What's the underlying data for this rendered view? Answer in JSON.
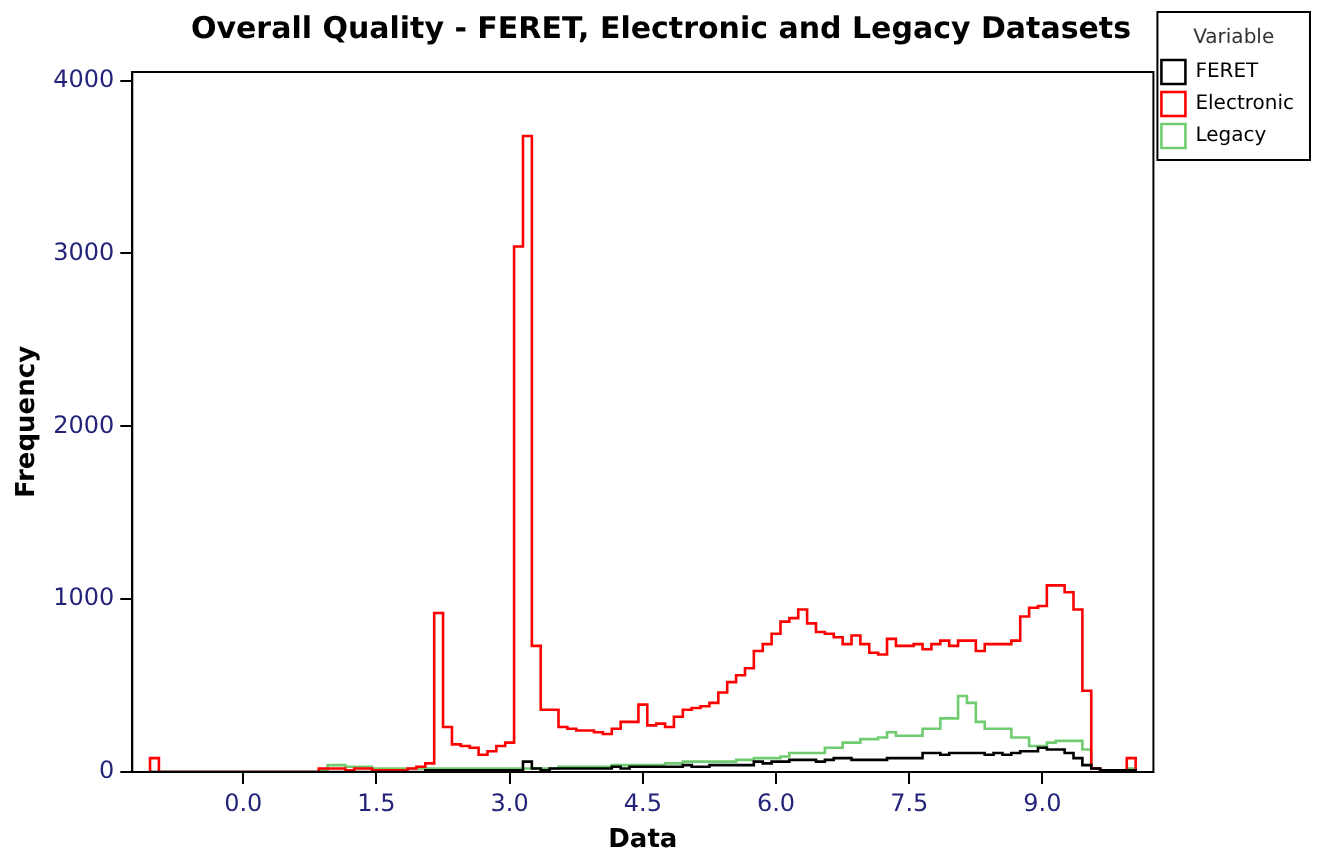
{
  "chart_data": {
    "type": "histogram",
    "title": "Overall Quality - FERET, Electronic and Legacy Datasets",
    "xlabel": "Data",
    "ylabel": "Frequency",
    "legend_title": "Variable",
    "legend": "top right",
    "xlim": [
      -1.25,
      10.25
    ],
    "xticks": [
      {
        "value": 0,
        "label": "0.0"
      },
      1.5,
      {
        "value": 3,
        "label": "3.0"
      },
      4.5,
      {
        "value": 6,
        "label": "6.0"
      },
      7.5,
      {
        "value": 9,
        "label": "9.0"
      }
    ],
    "ylim": [
      0,
      4050
    ],
    "yticks": [
      0,
      1000,
      2000,
      3000,
      4000
    ],
    "bins": [
      -1.05,
      -0.95,
      0.85,
      0.95,
      1.05,
      1.15,
      1.25,
      1.35,
      1.45,
      1.55,
      1.65,
      1.75,
      1.85,
      1.95,
      2.05,
      2.15,
      2.25,
      2.35,
      2.45,
      2.55,
      2.65,
      2.75,
      2.85,
      2.95,
      3.05,
      3.15,
      3.25,
      3.35,
      3.45,
      3.55,
      3.65,
      3.75,
      3.85,
      3.95,
      4.05,
      4.15,
      4.25,
      4.35,
      4.45,
      4.55,
      4.65,
      4.75,
      4.85,
      4.95,
      5.05,
      5.15,
      5.25,
      5.35,
      5.45,
      5.55,
      5.65,
      5.75,
      5.85,
      5.95,
      6.05,
      6.15,
      6.25,
      6.35,
      6.45,
      6.55,
      6.65,
      6.75,
      6.85,
      6.95,
      7.05,
      7.15,
      7.25,
      7.35,
      7.45,
      7.55,
      7.65,
      7.75,
      7.85,
      7.95,
      8.05,
      8.15,
      8.25,
      8.35,
      8.45,
      8.55,
      8.65,
      8.75,
      8.85,
      8.95,
      9.05,
      9.15,
      9.25,
      9.35,
      9.45,
      9.55,
      9.65,
      9.75,
      9.85,
      9.95,
      10.05
    ],
    "series": [
      {
        "name": "FERET",
        "color": "#000000",
        "values": [
          0,
          0,
          0,
          0,
          0,
          0,
          0,
          0,
          0,
          0,
          0,
          0,
          0,
          0,
          10,
          10,
          10,
          10,
          10,
          10,
          10,
          10,
          10,
          10,
          10,
          60,
          20,
          10,
          20,
          20,
          20,
          20,
          20,
          20,
          20,
          30,
          20,
          30,
          30,
          30,
          30,
          30,
          30,
          40,
          30,
          30,
          40,
          40,
          40,
          40,
          40,
          60,
          50,
          60,
          60,
          70,
          70,
          70,
          60,
          70,
          80,
          80,
          70,
          70,
          70,
          70,
          80,
          80,
          80,
          80,
          110,
          110,
          100,
          110,
          110,
          110,
          110,
          100,
          110,
          100,
          110,
          120,
          120,
          140,
          130,
          130,
          110,
          80,
          40,
          20,
          10,
          10,
          10,
          10
        ]
      },
      {
        "name": "Electronic",
        "color": "#ff0000",
        "values": [
          80,
          0,
          20,
          20,
          20,
          10,
          20,
          20,
          10,
          10,
          10,
          10,
          20,
          30,
          50,
          920,
          260,
          160,
          150,
          140,
          100,
          120,
          150,
          170,
          3040,
          3680,
          730,
          360,
          360,
          260,
          250,
          240,
          240,
          230,
          220,
          250,
          290,
          290,
          390,
          270,
          280,
          260,
          320,
          360,
          370,
          380,
          400,
          460,
          520,
          560,
          600,
          700,
          740,
          800,
          870,
          890,
          940,
          860,
          810,
          800,
          780,
          740,
          790,
          740,
          690,
          680,
          770,
          730,
          730,
          740,
          710,
          740,
          760,
          730,
          760,
          760,
          700,
          740,
          740,
          740,
          760,
          900,
          950,
          960,
          1080,
          1080,
          1040,
          940,
          470,
          20,
          10,
          10,
          10,
          80
        ]
      },
      {
        "name": "Legacy",
        "color": "#70cc70",
        "values": [
          0,
          0,
          10,
          40,
          40,
          30,
          30,
          30,
          20,
          20,
          20,
          20,
          20,
          20,
          20,
          20,
          20,
          20,
          20,
          20,
          20,
          20,
          20,
          20,
          20,
          20,
          20,
          20,
          20,
          30,
          30,
          30,
          30,
          30,
          30,
          40,
          40,
          40,
          40,
          40,
          40,
          50,
          50,
          60,
          60,
          60,
          60,
          60,
          60,
          70,
          70,
          80,
          80,
          80,
          90,
          110,
          110,
          110,
          110,
          140,
          140,
          170,
          170,
          190,
          190,
          200,
          230,
          210,
          210,
          210,
          250,
          250,
          310,
          310,
          440,
          400,
          290,
          250,
          250,
          250,
          200,
          200,
          150,
          150,
          170,
          180,
          180,
          180,
          130,
          20,
          10,
          10,
          10,
          20
        ]
      }
    ]
  }
}
